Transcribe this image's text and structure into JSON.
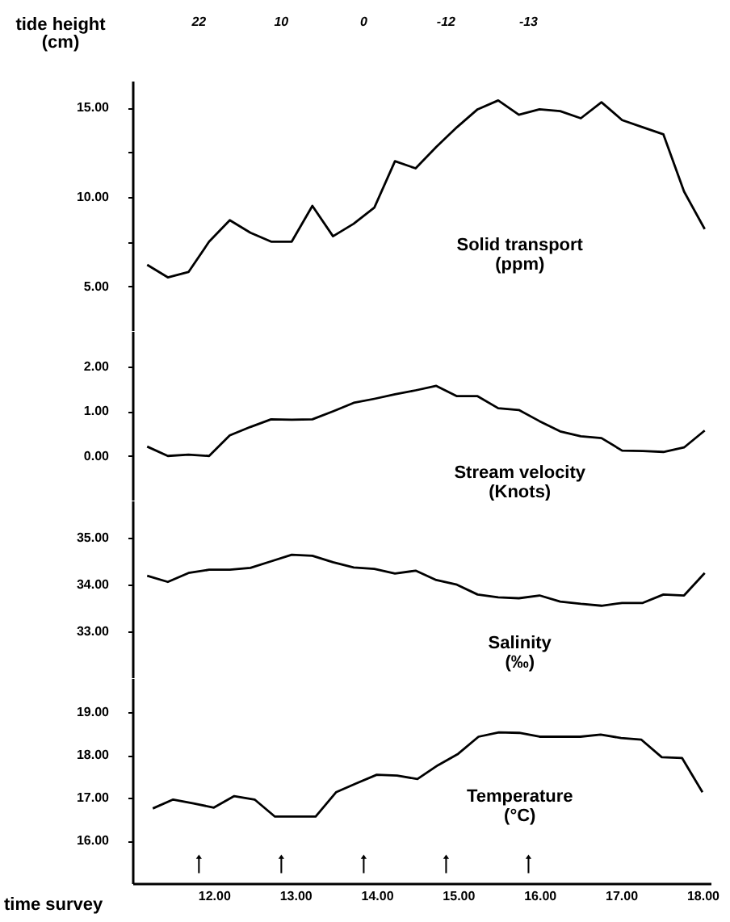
{
  "chart_data": [
    {
      "type": "line",
      "ylabel": "tide height (cm)",
      "categories": [
        null,
        null,
        null,
        null,
        null,
        null,
        null,
        null,
        null,
        null,
        null,
        null,
        null,
        null,
        null,
        null,
        null,
        null,
        null,
        null,
        null,
        null,
        null,
        null,
        null,
        null,
        null,
        null
      ],
      "series": [
        {
          "name": "Solid transport (ppm)",
          "color": "#000000",
          "values": [
            6.2,
            5.5,
            5.8,
            7.5,
            8.7,
            8.0,
            7.5,
            7.5,
            9.5,
            7.8,
            8.5,
            9.4,
            12.0,
            11.6,
            12.8,
            13.9,
            14.9,
            15.4,
            14.6,
            14.9,
            14.8,
            14.4,
            15.3,
            14.3,
            13.9,
            13.5,
            10.3,
            8.2
          ]
        }
      ],
      "ylim": [
        2.5,
        16.5
      ],
      "yticks": [
        {
          "value": 5,
          "label": "5.00"
        },
        {
          "value": 7.5,
          "label": null
        },
        {
          "value": 10,
          "label": "10.00"
        },
        {
          "value": 12.5,
          "label": null
        },
        {
          "value": 15,
          "label": "15.00"
        }
      ],
      "annotations": [
        "22",
        "10",
        "0",
        "-12",
        "-13"
      ],
      "tick_labels": "y"
    },
    {
      "type": "line",
      "categories": [
        null,
        null,
        null,
        null,
        null,
        null,
        null,
        null,
        null,
        null,
        null,
        null,
        null,
        null,
        null,
        null,
        null,
        null,
        null,
        null,
        null,
        null,
        null,
        null,
        null,
        null,
        null,
        null
      ],
      "series": [
        {
          "name": "Stream velocity (Knots)",
          "color": "#000000",
          "values": [
            0.21,
            0.0,
            0.03,
            0.0,
            0.46,
            0.65,
            0.82,
            0.81,
            0.82,
            1.0,
            1.19,
            1.28,
            1.38,
            1.47,
            1.57,
            1.34,
            1.34,
            1.07,
            1.03,
            0.78,
            0.55,
            0.44,
            0.4,
            0.12,
            0.11,
            0.09,
            0.19,
            0.57
          ]
        }
      ],
      "ylim": [
        -1,
        2.8
      ],
      "yticks": [
        {
          "value": 0,
          "label": "0.00"
        },
        {
          "value": 1,
          "label": "1.00"
        },
        {
          "value": 2,
          "label": "2.00"
        }
      ],
      "tick_labels": "y"
    },
    {
      "type": "line",
      "categories": [
        null,
        null,
        null,
        null,
        null,
        null,
        null,
        null,
        null,
        null,
        null,
        null,
        null,
        null,
        null,
        null,
        null,
        null,
        null,
        null,
        null,
        null,
        null,
        null,
        null,
        null,
        null,
        null
      ],
      "series": [
        {
          "name": "Salinity (‰)",
          "color": "#000000",
          "values": [
            34.19,
            34.06,
            34.25,
            34.32,
            34.32,
            34.36,
            34.5,
            34.64,
            34.62,
            34.48,
            34.37,
            34.34,
            34.24,
            34.3,
            34.1,
            34.0,
            33.79,
            33.73,
            33.71,
            33.77,
            33.64,
            33.59,
            33.55,
            33.61,
            33.61,
            33.79,
            33.77,
            34.25
          ]
        }
      ],
      "ylim": [
        32,
        35.8
      ],
      "yticks": [
        {
          "value": 33,
          "label": "33.00"
        },
        {
          "value": 34,
          "label": "34.00"
        },
        {
          "value": 35,
          "label": "35.00"
        }
      ],
      "tick_labels": "y"
    },
    {
      "type": "line",
      "xlabel": "time survey",
      "x": [
        11.25,
        11.5,
        11.75,
        12,
        12.25,
        12.5,
        12.75,
        13,
        13.25,
        13.5,
        13.75,
        14,
        14.25,
        14.5,
        14.75,
        15,
        15.25,
        15.5,
        15.75,
        16,
        16.25,
        16.5,
        16.75,
        17,
        17.25,
        17.5,
        17.75,
        18
      ],
      "series": [
        {
          "name": "Temperature (°C)",
          "color": "#000000",
          "values": [
            16.75,
            16.96,
            16.87,
            16.77,
            17.04,
            16.96,
            16.56,
            16.56,
            16.56,
            17.13,
            17.34,
            17.54,
            17.52,
            17.44,
            17.76,
            18.03,
            18.43,
            18.53,
            18.52,
            18.43,
            18.43,
            18.43,
            18.48,
            18.4,
            18.36,
            17.95,
            17.93,
            17.13
          ]
        }
      ],
      "xlim": [
        11,
        18.1
      ],
      "ylim": [
        15,
        19.8
      ],
      "xticks": [
        {
          "value": 12,
          "label": "12.00"
        },
        {
          "value": 13,
          "label": "13.00"
        },
        {
          "value": 14,
          "label": "14.00"
        },
        {
          "value": 15,
          "label": "15.00"
        },
        {
          "value": 16,
          "label": "16.00"
        },
        {
          "value": 17,
          "label": "17.00"
        },
        {
          "value": 18,
          "label": "18.00"
        }
      ],
      "yticks": [
        {
          "value": 16,
          "label": "16.00"
        },
        {
          "value": 17,
          "label": "17.00"
        },
        {
          "value": 18,
          "label": "18.00"
        },
        {
          "value": 19,
          "label": "19.00"
        }
      ]
    }
  ]
}
